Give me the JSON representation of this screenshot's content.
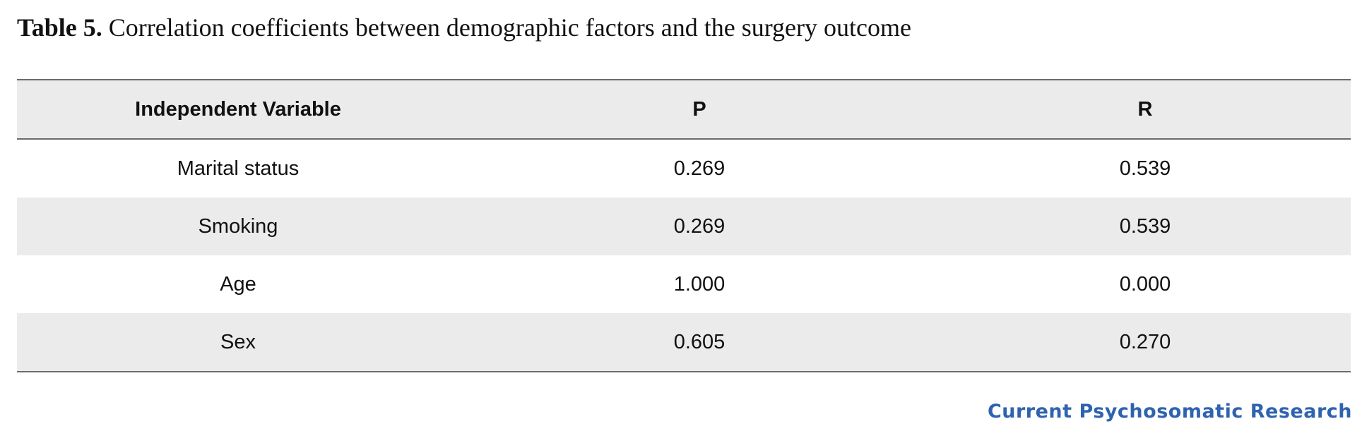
{
  "caption": {
    "label": "Table 5.",
    "text": " Correlation coefficients between demographic factors and the surgery outcome"
  },
  "table": {
    "headers": [
      "Independent Variable",
      "P",
      "R"
    ],
    "rows": [
      [
        "Marital status",
        "0.269",
        "0.539"
      ],
      [
        "Smoking",
        "0.269",
        "0.539"
      ],
      [
        "Age",
        "1.000",
        "0.000"
      ],
      [
        "Sex",
        "0.605",
        "0.270"
      ]
    ]
  },
  "logo": {
    "text": "Current Psychosomatic Research",
    "color": "#2f63b0"
  },
  "colors": {
    "header_bg": "#ebebeb",
    "rule": "#6b6b6b"
  }
}
